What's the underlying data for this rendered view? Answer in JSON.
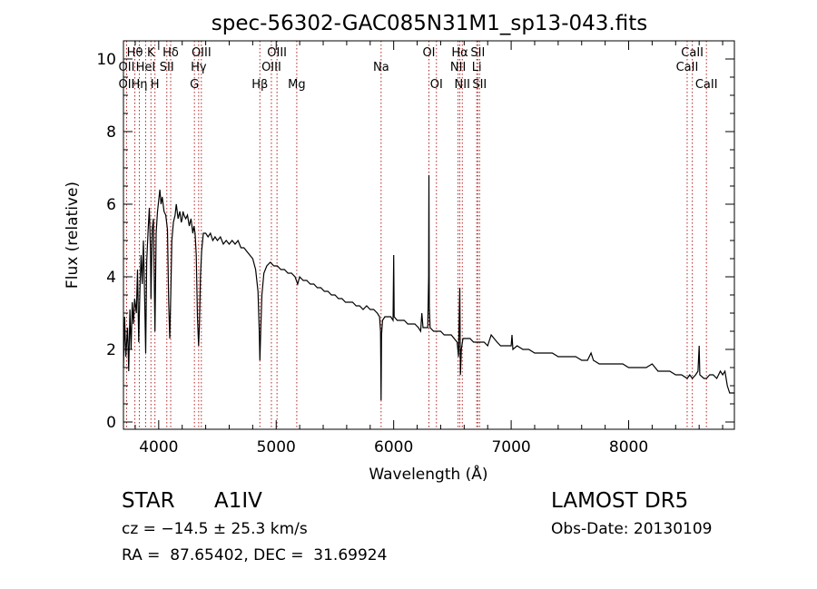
{
  "chart_data": {
    "type": "line",
    "title": "spec-56302-GAC085N31M1_sp13-043.fits",
    "xlabel": "Wavelength (Å)",
    "ylabel": "Flux (relative)",
    "xlim": [
      3700,
      8900
    ],
    "ylim": [
      -0.2,
      10.5
    ],
    "x_ticks": [
      4000,
      5000,
      6000,
      7000,
      8000
    ],
    "y_ticks": [
      0,
      2,
      4,
      6,
      8,
      10
    ],
    "grid": false,
    "line_color": "#000000",
    "marker_color": "#b22222",
    "spectrum": [
      [
        3700,
        1.5
      ],
      [
        3710,
        2.9
      ],
      [
        3720,
        1.8
      ],
      [
        3735,
        2.6
      ],
      [
        3745,
        1.4
      ],
      [
        3755,
        3.1
      ],
      [
        3765,
        2.0
      ],
      [
        3775,
        3.3
      ],
      [
        3785,
        2.7
      ],
      [
        3795,
        3.4
      ],
      [
        3810,
        3.0
      ],
      [
        3820,
        4.2
      ],
      [
        3830,
        2.2
      ],
      [
        3840,
        3.6
      ],
      [
        3850,
        4.6
      ],
      [
        3860,
        3.8
      ],
      [
        3870,
        5.0
      ],
      [
        3880,
        3.5
      ],
      [
        3889,
        1.9
      ],
      [
        3898,
        4.4
      ],
      [
        3910,
        5.3
      ],
      [
        3920,
        5.9
      ],
      [
        3930,
        4.7
      ],
      [
        3934,
        3.4
      ],
      [
        3945,
        5.3
      ],
      [
        3955,
        5.6
      ],
      [
        3962,
        4.0
      ],
      [
        3968,
        2.5
      ],
      [
        3978,
        5.2
      ],
      [
        3990,
        5.8
      ],
      [
        4000,
        6.1
      ],
      [
        4010,
        6.4
      ],
      [
        4020,
        6.0
      ],
      [
        4030,
        6.2
      ],
      [
        4045,
        5.8
      ],
      [
        4060,
        5.7
      ],
      [
        4075,
        5.3
      ],
      [
        4085,
        3.3
      ],
      [
        4094,
        2.3
      ],
      [
        4103,
        3.6
      ],
      [
        4112,
        5.0
      ],
      [
        4125,
        5.5
      ],
      [
        4140,
        5.7
      ],
      [
        4150,
        6.0
      ],
      [
        4165,
        5.6
      ],
      [
        4180,
        5.8
      ],
      [
        4192,
        5.5
      ],
      [
        4200,
        5.6
      ],
      [
        4207,
        5.8
      ],
      [
        4215,
        5.7
      ],
      [
        4230,
        5.6
      ],
      [
        4245,
        5.7
      ],
      [
        4260,
        5.4
      ],
      [
        4275,
        5.6
      ],
      [
        4290,
        5.2
      ],
      [
        4300,
        5.4
      ],
      [
        4310,
        5.2
      ],
      [
        4320,
        4.6
      ],
      [
        4330,
        2.9
      ],
      [
        4340,
        2.1
      ],
      [
        4347,
        2.7
      ],
      [
        4355,
        4.0
      ],
      [
        4365,
        4.7
      ],
      [
        4380,
        5.2
      ],
      [
        4400,
        5.2
      ],
      [
        4420,
        5.1
      ],
      [
        4440,
        5.2
      ],
      [
        4460,
        5.0
      ],
      [
        4480,
        5.1
      ],
      [
        4500,
        5.0
      ],
      [
        4525,
        5.1
      ],
      [
        4550,
        4.9
      ],
      [
        4575,
        5.0
      ],
      [
        4600,
        4.9
      ],
      [
        4625,
        5.0
      ],
      [
        4650,
        4.9
      ],
      [
        4675,
        5.0
      ],
      [
        4700,
        4.8
      ],
      [
        4725,
        4.8
      ],
      [
        4750,
        4.7
      ],
      [
        4775,
        4.6
      ],
      [
        4800,
        4.5
      ],
      [
        4825,
        4.2
      ],
      [
        4845,
        3.6
      ],
      [
        4855,
        2.6
      ],
      [
        4861,
        1.7
      ],
      [
        4868,
        2.5
      ],
      [
        4878,
        3.5
      ],
      [
        4895,
        4.1
      ],
      [
        4920,
        4.3
      ],
      [
        4950,
        4.4
      ],
      [
        4980,
        4.3
      ],
      [
        5010,
        4.3
      ],
      [
        5040,
        4.2
      ],
      [
        5070,
        4.2
      ],
      [
        5100,
        4.1
      ],
      [
        5130,
        4.1
      ],
      [
        5160,
        4.0
      ],
      [
        5183,
        3.8
      ],
      [
        5200,
        4.0
      ],
      [
        5230,
        3.9
      ],
      [
        5260,
        3.9
      ],
      [
        5290,
        3.8
      ],
      [
        5320,
        3.8
      ],
      [
        5350,
        3.7
      ],
      [
        5380,
        3.7
      ],
      [
        5410,
        3.6
      ],
      [
        5440,
        3.6
      ],
      [
        5470,
        3.5
      ],
      [
        5500,
        3.5
      ],
      [
        5530,
        3.4
      ],
      [
        5560,
        3.4
      ],
      [
        5590,
        3.3
      ],
      [
        5620,
        3.3
      ],
      [
        5650,
        3.3
      ],
      [
        5680,
        3.2
      ],
      [
        5710,
        3.2
      ],
      [
        5740,
        3.1
      ],
      [
        5770,
        3.2
      ],
      [
        5800,
        3.1
      ],
      [
        5830,
        3.1
      ],
      [
        5860,
        3.0
      ],
      [
        5880,
        2.9
      ],
      [
        5888,
        2.5
      ],
      [
        5893,
        0.6
      ],
      [
        5897,
        2.4
      ],
      [
        5905,
        2.8
      ],
      [
        5925,
        2.9
      ],
      [
        5950,
        2.9
      ],
      [
        5975,
        2.9
      ],
      [
        5995,
        2.8
      ],
      [
        6000,
        4.6
      ],
      [
        6004,
        2.9
      ],
      [
        6030,
        2.8
      ],
      [
        6060,
        2.8
      ],
      [
        6090,
        2.8
      ],
      [
        6120,
        2.7
      ],
      [
        6150,
        2.7
      ],
      [
        6180,
        2.7
      ],
      [
        6210,
        2.6
      ],
      [
        6230,
        2.5
      ],
      [
        6240,
        3.0
      ],
      [
        6250,
        2.6
      ],
      [
        6270,
        2.6
      ],
      [
        6290,
        2.6
      ],
      [
        6298,
        4.0
      ],
      [
        6300,
        6.8
      ],
      [
        6303,
        3.2
      ],
      [
        6310,
        2.6
      ],
      [
        6340,
        2.5
      ],
      [
        6370,
        2.5
      ],
      [
        6400,
        2.5
      ],
      [
        6430,
        2.4
      ],
      [
        6460,
        2.4
      ],
      [
        6490,
        2.4
      ],
      [
        6515,
        2.3
      ],
      [
        6540,
        2.2
      ],
      [
        6552,
        1.8
      ],
      [
        6558,
        2.9
      ],
      [
        6563,
        3.7
      ],
      [
        6568,
        1.3
      ],
      [
        6576,
        2.0
      ],
      [
        6590,
        2.3
      ],
      [
        6620,
        2.3
      ],
      [
        6650,
        2.3
      ],
      [
        6680,
        2.2
      ],
      [
        6710,
        2.2
      ],
      [
        6740,
        2.2
      ],
      [
        6770,
        2.2
      ],
      [
        6800,
        2.1
      ],
      [
        6830,
        2.4
      ],
      [
        6855,
        2.3
      ],
      [
        6880,
        2.2
      ],
      [
        6910,
        2.1
      ],
      [
        6940,
        2.1
      ],
      [
        6970,
        2.1
      ],
      [
        7000,
        2.1
      ],
      [
        7007,
        2.4
      ],
      [
        7015,
        2.0
      ],
      [
        7050,
        2.1
      ],
      [
        7100,
        2.0
      ],
      [
        7150,
        2.0
      ],
      [
        7200,
        1.9
      ],
      [
        7250,
        1.9
      ],
      [
        7300,
        1.9
      ],
      [
        7350,
        1.9
      ],
      [
        7400,
        1.8
      ],
      [
        7450,
        1.8
      ],
      [
        7500,
        1.8
      ],
      [
        7550,
        1.8
      ],
      [
        7600,
        1.7
      ],
      [
        7650,
        1.7
      ],
      [
        7680,
        1.9
      ],
      [
        7700,
        1.7
      ],
      [
        7750,
        1.6
      ],
      [
        7800,
        1.6
      ],
      [
        7850,
        1.6
      ],
      [
        7900,
        1.6
      ],
      [
        7950,
        1.6
      ],
      [
        8000,
        1.5
      ],
      [
        8050,
        1.5
      ],
      [
        8100,
        1.5
      ],
      [
        8150,
        1.5
      ],
      [
        8200,
        1.6
      ],
      [
        8250,
        1.4
      ],
      [
        8300,
        1.4
      ],
      [
        8350,
        1.4
      ],
      [
        8400,
        1.3
      ],
      [
        8450,
        1.3
      ],
      [
        8498,
        1.2
      ],
      [
        8520,
        1.3
      ],
      [
        8542,
        1.2
      ],
      [
        8570,
        1.3
      ],
      [
        8590,
        1.4
      ],
      [
        8600,
        2.1
      ],
      [
        8606,
        1.3
      ],
      [
        8640,
        1.2
      ],
      [
        8662,
        1.2
      ],
      [
        8690,
        1.3
      ],
      [
        8720,
        1.3
      ],
      [
        8750,
        1.2
      ],
      [
        8780,
        1.4
      ],
      [
        8800,
        1.3
      ],
      [
        8820,
        1.4
      ],
      [
        8840,
        1.0
      ],
      [
        8860,
        0.8
      ],
      [
        8890,
        0.8
      ],
      [
        8900,
        0.8
      ]
    ],
    "lines": [
      {
        "label": "OII",
        "wave": 3727,
        "row": 2,
        "dx": 0
      },
      {
        "label": "Hθ",
        "wave": 3797,
        "row": 1,
        "dx": 0
      },
      {
        "label": "OII",
        "wave": 3727,
        "row": 3,
        "dx": 0
      },
      {
        "label": "Hη",
        "wave": 3835,
        "row": 3,
        "dx": 0
      },
      {
        "label": "HeI",
        "wave": 3889,
        "row": 2,
        "dx": 0
      },
      {
        "label": "K",
        "wave": 3934,
        "row": 1,
        "dx": 0
      },
      {
        "label": "H",
        "wave": 3968,
        "row": 3,
        "dx": 0
      },
      {
        "label": "Hδ",
        "wave": 4102,
        "row": 1,
        "dx": 0
      },
      {
        "label": "SII",
        "wave": 4069,
        "row": 2,
        "dx": 0
      },
      {
        "label": "OIII",
        "wave": 4363,
        "row": 1,
        "dx": 0
      },
      {
        "label": "Hγ",
        "wave": 4340,
        "row": 2,
        "dx": 0
      },
      {
        "label": "G",
        "wave": 4304,
        "row": 3,
        "dx": 0
      },
      {
        "label": "Hβ",
        "wave": 4861,
        "row": 3,
        "dx": 0
      },
      {
        "label": "OIII",
        "wave": 5007,
        "row": 1,
        "dx": 0
      },
      {
        "label": "OIII",
        "wave": 4959,
        "row": 2,
        "dx": 0
      },
      {
        "label": "Mg",
        "wave": 5175,
        "row": 3,
        "dx": 0
      },
      {
        "label": "Na",
        "wave": 5893,
        "row": 2,
        "dx": 0
      },
      {
        "label": "OI",
        "wave": 6300,
        "row": 1,
        "dx": 0
      },
      {
        "label": "OI",
        "wave": 6364,
        "row": 3,
        "dx": 0
      },
      {
        "label": "Hα",
        "wave": 6563,
        "row": 1,
        "dx": 0
      },
      {
        "label": "SII",
        "wave": 6716,
        "row": 1,
        "dx": 0
      },
      {
        "label": "NII",
        "wave": 6548,
        "row": 2,
        "dx": 0
      },
      {
        "label": "Li",
        "wave": 6707,
        "row": 2,
        "dx": 0
      },
      {
        "label": "NII",
        "wave": 6584,
        "row": 3,
        "dx": 0
      },
      {
        "label": "SII",
        "wave": 6731,
        "row": 3,
        "dx": 0
      },
      {
        "label": "CaII",
        "wave": 8542,
        "row": 1,
        "dx": 0
      },
      {
        "label": "CaII",
        "wave": 8498,
        "row": 2,
        "dx": 0
      },
      {
        "label": "CaII",
        "wave": 8662,
        "row": 3,
        "dx": 0
      }
    ]
  },
  "info": {
    "class_label": "STAR",
    "subclass": "A1IV",
    "survey": "LAMOST DR5",
    "cz_line": "cz = −14.5 ± 25.3 km/s",
    "obs_date": "Obs-Date: 20130109",
    "coords": "RA =  87.65402, DEC =  31.69924"
  }
}
